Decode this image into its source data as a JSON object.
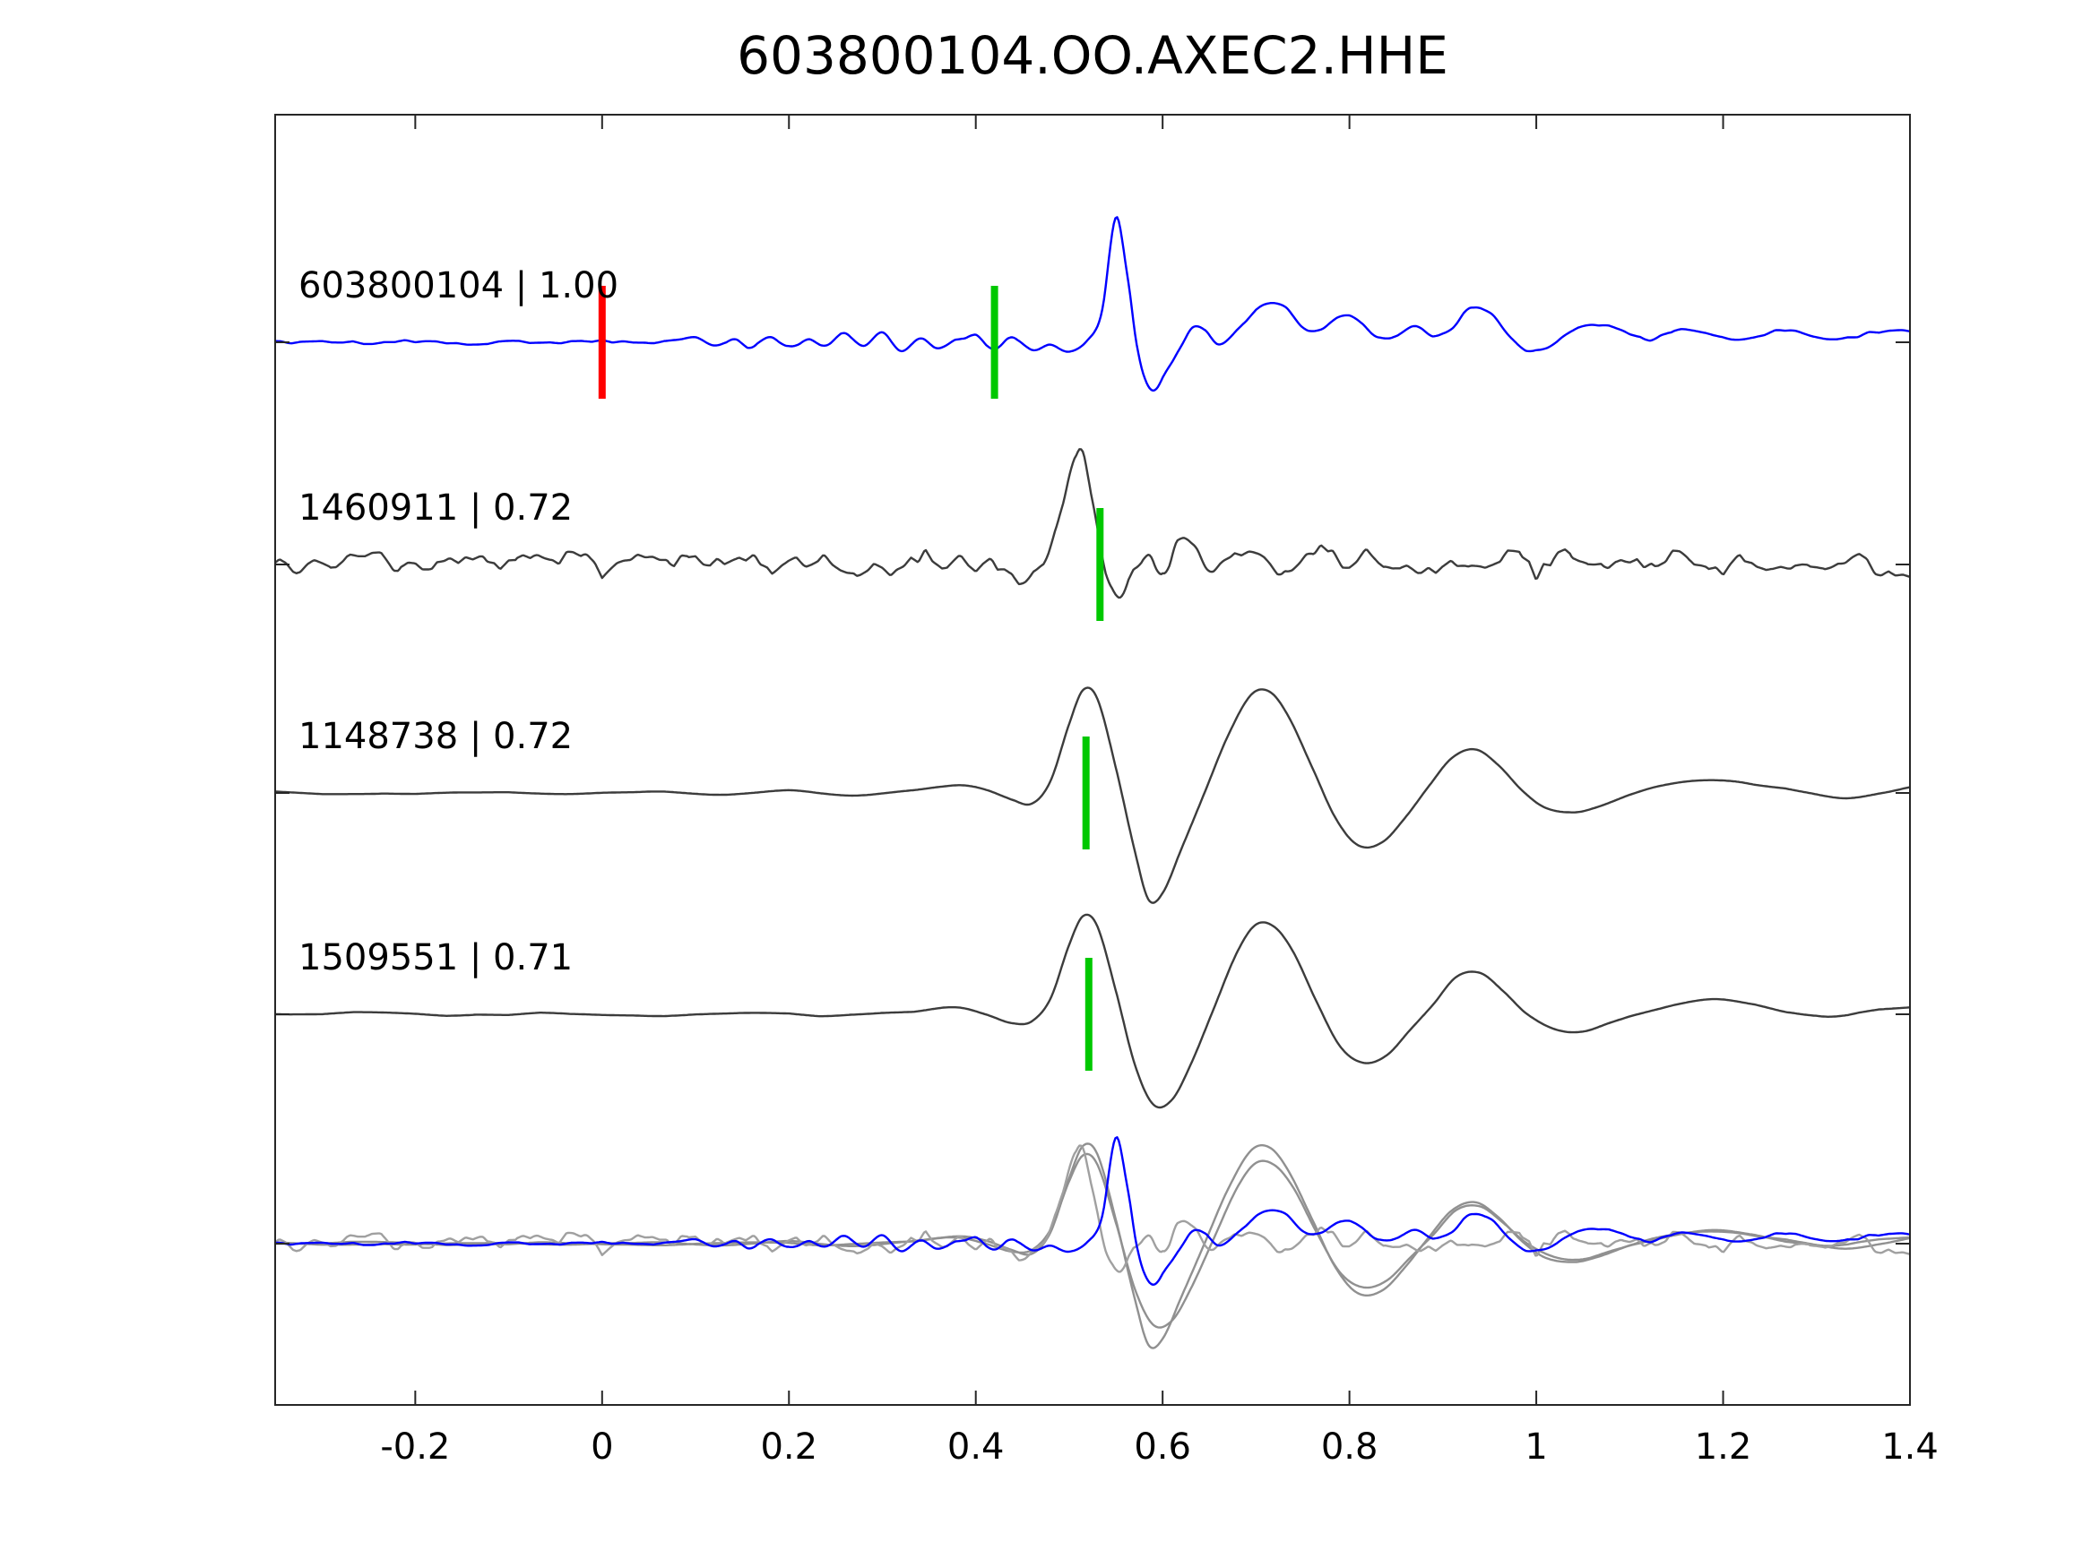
{
  "chart_data": {
    "type": "line",
    "title": "603800104.OO.AXEC2.HHE",
    "xlabel": "",
    "ylabel": "",
    "xlim": [
      -0.35,
      1.4
    ],
    "xticks": [
      -0.2,
      0,
      0.2,
      0.4,
      0.6,
      0.8,
      1,
      1.2,
      1.4
    ],
    "xtick_labels": [
      "-0.2",
      "0",
      "0.2",
      "0.4",
      "0.6",
      "0.8",
      "1",
      "1.2",
      "1.4"
    ],
    "grid": false,
    "legend": "none",
    "colors": {
      "template": "#0000ff",
      "detection": "#3c3c3c",
      "overlay_gray": "#909090",
      "pick_green": "#00c800",
      "reference_red": "#ff0000",
      "axis": "#262626"
    },
    "traces": [
      {
        "id": "603800104",
        "label": "603800104 | 1.00",
        "correlation": 1.0,
        "color": "#0000ff",
        "row": 0,
        "seed": 1,
        "noise": [
          {
            "amp": 0.012,
            "freq": 90
          }
        ],
        "markers": [
          {
            "x": 0.0,
            "color": "#ff0000",
            "kind": "reference"
          },
          {
            "x": 0.42,
            "color": "#00c800",
            "kind": "pick"
          }
        ],
        "points": [
          [
            -0.35,
            0
          ],
          [
            -0.3,
            0.005
          ],
          [
            -0.25,
            -0.005
          ],
          [
            -0.2,
            0.01
          ],
          [
            -0.15,
            -0.01
          ],
          [
            -0.1,
            0.005
          ],
          [
            -0.05,
            -0.005
          ],
          [
            0.0,
            0.01
          ],
          [
            0.05,
            -0.01
          ],
          [
            0.08,
            0.01
          ],
          [
            0.1,
            0.03
          ],
          [
            0.12,
            -0.03
          ],
          [
            0.14,
            0.02
          ],
          [
            0.16,
            -0.04
          ],
          [
            0.18,
            0.05
          ],
          [
            0.2,
            -0.04
          ],
          [
            0.22,
            0.02
          ],
          [
            0.24,
            -0.02
          ],
          [
            0.26,
            0.07
          ],
          [
            0.28,
            -0.03
          ],
          [
            0.3,
            0.08
          ],
          [
            0.32,
            -0.06
          ],
          [
            0.34,
            0.03
          ],
          [
            0.36,
            -0.04
          ],
          [
            0.38,
            0.02
          ],
          [
            0.4,
            0.05
          ],
          [
            0.42,
            -0.05
          ],
          [
            0.44,
            0.04
          ],
          [
            0.46,
            -0.06
          ],
          [
            0.48,
            -0.02
          ],
          [
            0.5,
            -0.08
          ],
          [
            0.52,
            0.02
          ],
          [
            0.535,
            0.25
          ],
          [
            0.55,
            1.0
          ],
          [
            0.562,
            0.55
          ],
          [
            0.572,
            0.0
          ],
          [
            0.582,
            -0.3
          ],
          [
            0.592,
            -0.38
          ],
          [
            0.605,
            -0.22
          ],
          [
            0.62,
            -0.02
          ],
          [
            0.632,
            0.12
          ],
          [
            0.645,
            0.1
          ],
          [
            0.658,
            -0.02
          ],
          [
            0.67,
            0.02
          ],
          [
            0.69,
            0.18
          ],
          [
            0.71,
            0.3
          ],
          [
            0.73,
            0.28
          ],
          [
            0.75,
            0.12
          ],
          [
            0.77,
            0.1
          ],
          [
            0.79,
            0.2
          ],
          [
            0.81,
            0.18
          ],
          [
            0.83,
            0.04
          ],
          [
            0.85,
            0.05
          ],
          [
            0.87,
            0.12
          ],
          [
            0.89,
            0.05
          ],
          [
            0.91,
            0.1
          ],
          [
            0.93,
            0.28
          ],
          [
            0.95,
            0.24
          ],
          [
            0.97,
            0.05
          ],
          [
            0.99,
            -0.06
          ],
          [
            1.01,
            -0.05
          ],
          [
            1.03,
            0.05
          ],
          [
            1.06,
            0.14
          ],
          [
            1.09,
            0.1
          ],
          [
            1.12,
            0.02
          ],
          [
            1.15,
            0.1
          ],
          [
            1.18,
            0.08
          ],
          [
            1.21,
            0.02
          ],
          [
            1.24,
            0.06
          ],
          [
            1.27,
            0.1
          ],
          [
            1.3,
            0.04
          ],
          [
            1.33,
            0.03
          ],
          [
            1.36,
            0.08
          ],
          [
            1.39,
            0.1
          ],
          [
            1.4,
            0.09
          ]
        ]
      },
      {
        "id": "1460911",
        "label": "1460911 | 0.72",
        "correlation": 0.72,
        "color": "#3c3c3c",
        "row": 1,
        "seed": 2,
        "noise": [
          {
            "amp": 0.09,
            "freq": 55
          },
          {
            "amp": 0.04,
            "freq": 130
          }
        ],
        "markers": [
          {
            "x": 0.533,
            "color": "#00c800",
            "kind": "pick"
          }
        ],
        "points": [
          [
            -0.35,
            0
          ],
          [
            -0.2,
            0.0
          ],
          [
            0.0,
            0.0
          ],
          [
            0.2,
            0.0
          ],
          [
            0.35,
            0.0
          ],
          [
            0.42,
            -0.02
          ],
          [
            0.45,
            -0.1
          ],
          [
            0.47,
            0.05
          ],
          [
            0.49,
            0.35
          ],
          [
            0.51,
            0.95
          ],
          [
            0.525,
            0.55
          ],
          [
            0.54,
            -0.05
          ],
          [
            0.555,
            -0.28
          ],
          [
            0.57,
            -0.1
          ],
          [
            0.585,
            0.1
          ],
          [
            0.6,
            -0.12
          ],
          [
            0.615,
            0.15
          ],
          [
            0.63,
            0.18
          ],
          [
            0.65,
            0.0
          ],
          [
            0.67,
            0.1
          ],
          [
            0.7,
            0.12
          ],
          [
            0.73,
            -0.05
          ],
          [
            0.76,
            0.1
          ],
          [
            0.8,
            0.02
          ],
          [
            0.85,
            0.05
          ],
          [
            0.9,
            -0.03
          ],
          [
            0.95,
            0.04
          ],
          [
            1.0,
            0.0
          ],
          [
            1.05,
            0.05
          ],
          [
            1.1,
            -0.02
          ],
          [
            1.15,
            0.08
          ],
          [
            1.2,
            0.0
          ],
          [
            1.25,
            0.03
          ],
          [
            1.3,
            -0.02
          ],
          [
            1.35,
            0.02
          ],
          [
            1.4,
            -0.05
          ]
        ]
      },
      {
        "id": "1148738",
        "label": "1148738 | 0.72",
        "correlation": 0.72,
        "color": "#3c3c3c",
        "row": 2,
        "seed": 3,
        "noise": [
          {
            "amp": 0.008,
            "freq": 30
          }
        ],
        "markers": [
          {
            "x": 0.518,
            "color": "#00c800",
            "kind": "pick"
          }
        ],
        "points": [
          [
            -0.35,
            0.01
          ],
          [
            -0.25,
            -0.01
          ],
          [
            -0.15,
            0.01
          ],
          [
            -0.05,
            -0.01
          ],
          [
            0.05,
            0.01
          ],
          [
            0.12,
            -0.01
          ],
          [
            0.2,
            0.02
          ],
          [
            0.27,
            -0.02
          ],
          [
            0.33,
            0.02
          ],
          [
            0.38,
            0.06
          ],
          [
            0.41,
            0.02
          ],
          [
            0.44,
            -0.06
          ],
          [
            0.46,
            -0.08
          ],
          [
            0.48,
            0.1
          ],
          [
            0.5,
            0.55
          ],
          [
            0.515,
            0.82
          ],
          [
            0.53,
            0.75
          ],
          [
            0.55,
            0.2
          ],
          [
            0.57,
            -0.45
          ],
          [
            0.585,
            -0.85
          ],
          [
            0.6,
            -0.8
          ],
          [
            0.62,
            -0.45
          ],
          [
            0.645,
            0.0
          ],
          [
            0.67,
            0.45
          ],
          [
            0.695,
            0.78
          ],
          [
            0.715,
            0.8
          ],
          [
            0.735,
            0.6
          ],
          [
            0.76,
            0.2
          ],
          [
            0.785,
            -0.2
          ],
          [
            0.81,
            -0.42
          ],
          [
            0.835,
            -0.4
          ],
          [
            0.86,
            -0.2
          ],
          [
            0.885,
            0.05
          ],
          [
            0.91,
            0.28
          ],
          [
            0.935,
            0.35
          ],
          [
            0.96,
            0.22
          ],
          [
            0.985,
            0.02
          ],
          [
            1.01,
            -0.12
          ],
          [
            1.04,
            -0.16
          ],
          [
            1.07,
            -0.1
          ],
          [
            1.1,
            -0.02
          ],
          [
            1.13,
            0.05
          ],
          [
            1.17,
            0.1
          ],
          [
            1.21,
            0.1
          ],
          [
            1.25,
            0.05
          ],
          [
            1.29,
            0.0
          ],
          [
            1.33,
            -0.04
          ],
          [
            1.37,
            0.0
          ],
          [
            1.4,
            0.05
          ]
        ]
      },
      {
        "id": "1509551",
        "label": "1509551 | 0.71",
        "correlation": 0.71,
        "color": "#3c3c3c",
        "row": 3,
        "seed": 4,
        "noise": [
          {
            "amp": 0.008,
            "freq": 30
          }
        ],
        "markers": [
          {
            "x": 0.521,
            "color": "#00c800",
            "kind": "pick"
          }
        ],
        "points": [
          [
            -0.35,
            0.0
          ],
          [
            -0.25,
            0.01
          ],
          [
            -0.15,
            -0.01
          ],
          [
            -0.05,
            0.01
          ],
          [
            0.05,
            -0.01
          ],
          [
            0.15,
            0.01
          ],
          [
            0.25,
            -0.01
          ],
          [
            0.33,
            0.02
          ],
          [
            0.38,
            0.05
          ],
          [
            0.41,
            0.0
          ],
          [
            0.44,
            -0.07
          ],
          [
            0.46,
            -0.06
          ],
          [
            0.48,
            0.12
          ],
          [
            0.5,
            0.55
          ],
          [
            0.515,
            0.78
          ],
          [
            0.53,
            0.7
          ],
          [
            0.55,
            0.18
          ],
          [
            0.57,
            -0.4
          ],
          [
            0.59,
            -0.72
          ],
          [
            0.61,
            -0.68
          ],
          [
            0.63,
            -0.4
          ],
          [
            0.655,
            0.05
          ],
          [
            0.68,
            0.5
          ],
          [
            0.7,
            0.72
          ],
          [
            0.72,
            0.7
          ],
          [
            0.74,
            0.5
          ],
          [
            0.765,
            0.1
          ],
          [
            0.79,
            -0.25
          ],
          [
            0.815,
            -0.38
          ],
          [
            0.84,
            -0.32
          ],
          [
            0.865,
            -0.12
          ],
          [
            0.89,
            0.08
          ],
          [
            0.915,
            0.3
          ],
          [
            0.94,
            0.33
          ],
          [
            0.965,
            0.18
          ],
          [
            0.99,
            0.0
          ],
          [
            1.02,
            -0.12
          ],
          [
            1.05,
            -0.14
          ],
          [
            1.08,
            -0.07
          ],
          [
            1.11,
            0.0
          ],
          [
            1.15,
            0.08
          ],
          [
            1.19,
            0.12
          ],
          [
            1.23,
            0.08
          ],
          [
            1.27,
            0.02
          ],
          [
            1.31,
            -0.02
          ],
          [
            1.35,
            0.02
          ],
          [
            1.4,
            0.06
          ]
        ]
      }
    ],
    "overlay": {
      "row": 4,
      "items": [
        {
          "ref": "1148738",
          "color": "#909090",
          "scale": 0.95
        },
        {
          "ref": "1509551",
          "color": "#909090",
          "scale": 0.9
        },
        {
          "ref": "1460911",
          "color": "#a0a0a0",
          "scale": 0.85
        },
        {
          "ref": "603800104",
          "color": "#0000ff",
          "scale": 0.85
        }
      ]
    }
  }
}
